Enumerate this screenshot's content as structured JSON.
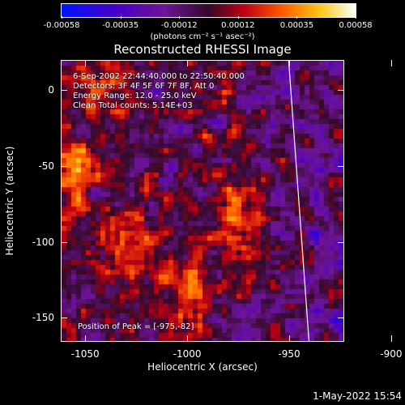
{
  "colors": {
    "background": "#000000",
    "text": "#ffffff",
    "limb": "#ffffff"
  },
  "colorbar": {
    "ticks": [
      "-0.00058",
      "-0.00035",
      "-0.00012",
      "0.00012",
      "0.00035",
      "0.00058"
    ],
    "units_label": "(photons cm⁻² s⁻¹ asec⁻²)",
    "range": [
      -0.00058,
      0.00058
    ]
  },
  "chart_data": {
    "type": "heatmap",
    "title": "Reconstructed RHESSI Image",
    "xlabel": "Heliocentric X (arcsec)",
    "ylabel": "Heliocentric Y (arcsec)",
    "xlim": [
      -1062,
      -923
    ],
    "ylim": [
      -166,
      20
    ],
    "x_ticks": [
      "-1050",
      "-1000",
      "-950",
      "-900"
    ],
    "x_tick_values": [
      -1050,
      -1000,
      -950,
      -900
    ],
    "y_ticks": [
      "0",
      "-50",
      "-100",
      "-150"
    ],
    "y_tick_values": [
      0,
      -50,
      -100,
      -150
    ],
    "peak_position": [
      -975,
      -82
    ],
    "sources": [
      {
        "x": -975,
        "y": -82,
        "strength": 1.0
      },
      {
        "x": -1055,
        "y": -50,
        "strength": 0.85
      },
      {
        "x": -1030,
        "y": -100,
        "strength": 0.6
      },
      {
        "x": -1000,
        "y": -135,
        "strength": 0.55
      },
      {
        "x": -1045,
        "y": 5,
        "strength": 0.5
      }
    ],
    "limb_line": {
      "x_start": -950,
      "y_start": 20,
      "x_end": -940,
      "y_end": -166
    },
    "info_lines": [
      "6-Sep-2002 22:44:40.000 to 22:50:40.000",
      "Detectors: 3F 4F 5F 6F 7F 8F, Att 0",
      "Energy Range: 12.0 - 25.0 keV",
      "Clean    Total counts: 5.14E+03"
    ],
    "peak_label": "Position of Peak = [-975,-82]"
  },
  "footer": {
    "timestamp": "1-May-2022 15:54"
  }
}
